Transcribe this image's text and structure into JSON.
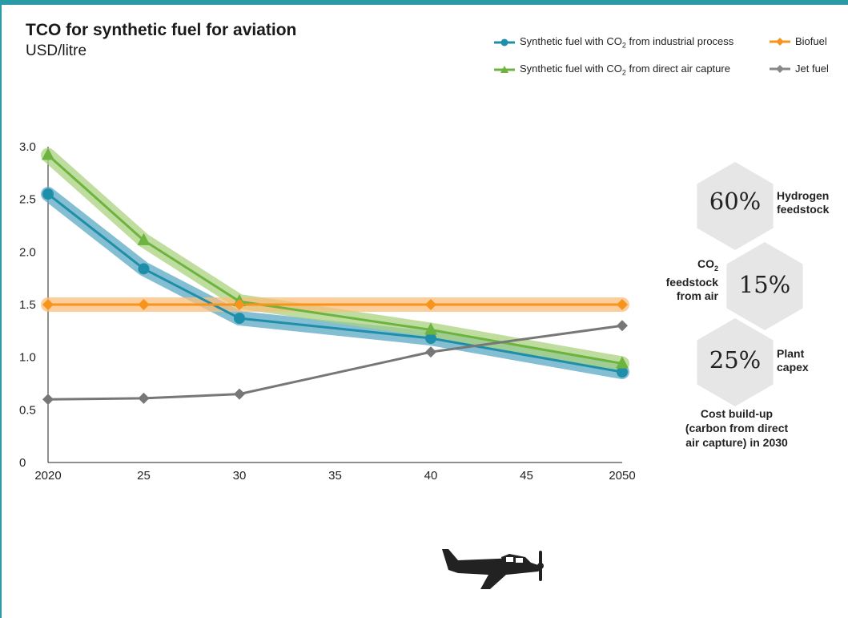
{
  "title": "TCO for synthetic fuel for aviation",
  "subtitle": "USD/litre",
  "chart_data": {
    "type": "line",
    "title": "TCO for synthetic fuel for aviation",
    "ylabel": "USD/litre",
    "x": [
      2020,
      2025,
      2030,
      2040,
      2050
    ],
    "x_ticks": [
      "2020",
      "25",
      "30",
      "35",
      "40",
      "45",
      "2050"
    ],
    "y_ticks": [
      "0",
      "0.5",
      "1.0",
      "1.5",
      "2.0",
      "2.5",
      "3.0"
    ],
    "ylim": [
      0,
      3.0
    ],
    "xlim": [
      2020,
      2050
    ],
    "grid": false,
    "legend_position": "top-right",
    "series": [
      {
        "name": "Synthetic fuel with CO2 from industrial process",
        "color": "#1f8ea8",
        "band_color": "#5aa8c4",
        "marker": "circle",
        "values": [
          2.55,
          1.84,
          1.37,
          1.18,
          0.86
        ]
      },
      {
        "name": "Synthetic fuel with CO2 from direct air capture",
        "color": "#6db33f",
        "band_color": "#a9d27f",
        "marker": "triangle",
        "values": [
          2.92,
          2.11,
          1.53,
          1.26,
          0.94
        ]
      },
      {
        "name": "Biofuel",
        "color": "#f7941d",
        "band_color": "#f9be79",
        "marker": "diamond",
        "values": [
          1.5,
          1.5,
          1.5,
          1.5,
          1.5
        ]
      },
      {
        "name": "Jet fuel",
        "color": "#777777",
        "marker": "diamond",
        "values": [
          0.6,
          0.61,
          0.65,
          1.05,
          1.3
        ]
      }
    ]
  },
  "legend": [
    {
      "pre": "Synthetic fuel with CO",
      "sub": "2",
      "post": " from industrial process"
    },
    {
      "pre": "Biofuel",
      "sub": "",
      "post": ""
    },
    {
      "pre": "Synthetic fuel with CO",
      "sub": "2",
      "post": " from direct air capture"
    },
    {
      "pre": "Jet fuel",
      "sub": "",
      "post": ""
    }
  ],
  "cost_buildup": {
    "hydrogen": {
      "pct": "60%",
      "label": "Hydrogen\nfeedstock"
    },
    "co2": {
      "pct": "15%",
      "pre": "CO",
      "sub": "2",
      "post": "\nfeedstock\nfrom air"
    },
    "capex": {
      "pct": "25%",
      "label": "Plant\ncapex"
    },
    "caption": "Cost build-up\n(carbon from direct\nair capture) in 2030"
  },
  "colors": {
    "frame": "#2a9aa7",
    "hexagon": "#e6e6e6",
    "airplane": "#222222"
  },
  "icons": [
    "airplane-icon"
  ]
}
